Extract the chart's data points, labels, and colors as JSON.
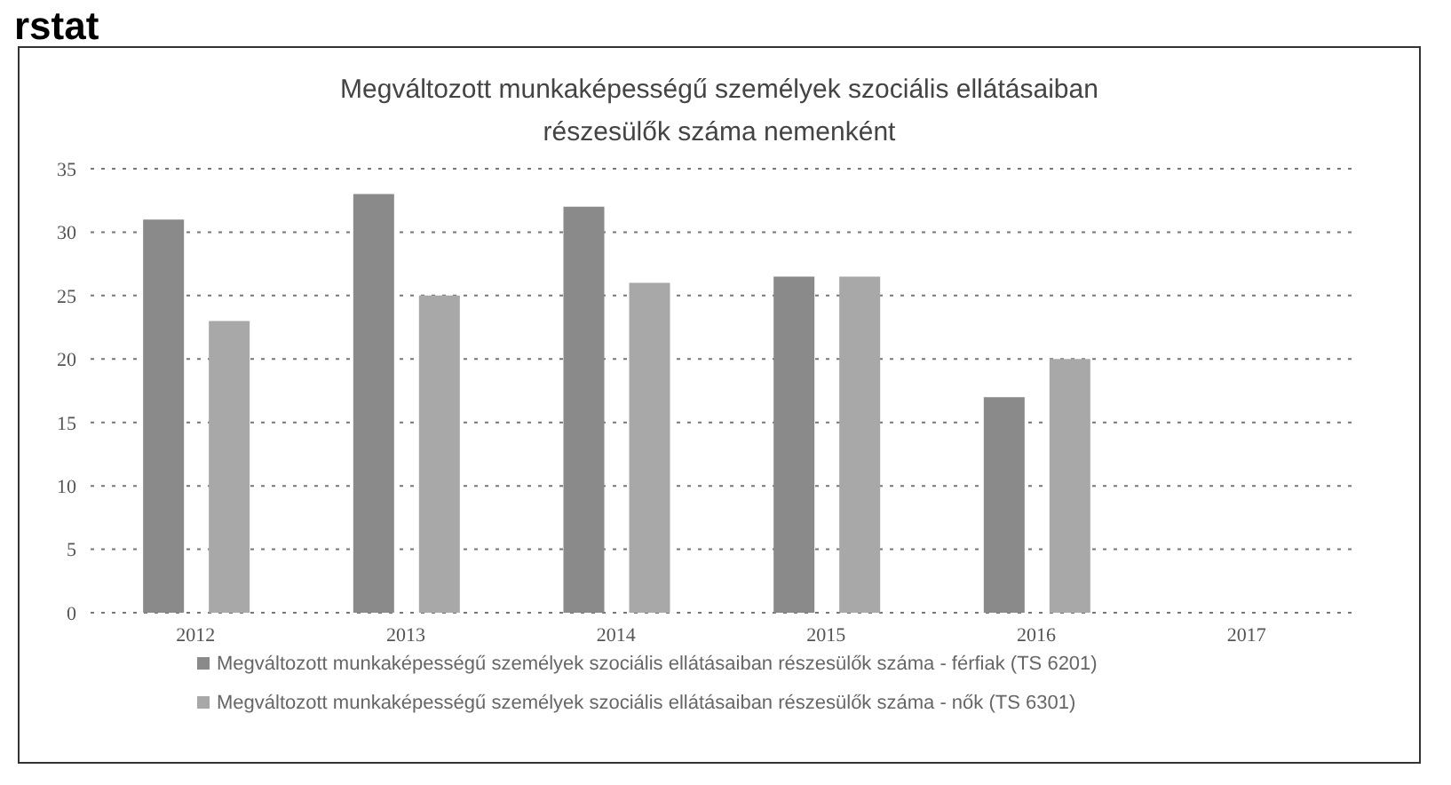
{
  "chart_data": {
    "type": "bar",
    "title": "Megváltozott munkaképességű személyek szociális ellátásaiban részesülők száma nemenként",
    "annotations": [
      "rstat"
    ],
    "categories": [
      "2012",
      "2013",
      "2014",
      "2015",
      "2016",
      "2017"
    ],
    "series": [
      {
        "name": "Megváltozott munkaképességű személyek szociális ellátásaiban részesülők száma - férfiak (TS 6201)",
        "color": "#8a8a8a",
        "values": [
          31,
          33,
          32,
          26.5,
          17,
          null
        ]
      },
      {
        "name": "Megváltozott munkaképességű személyek szociális ellátásaiban részesülők száma - nők (TS 6301)",
        "color": "#a8a8a8",
        "values": [
          23,
          25,
          26,
          26.5,
          20,
          null
        ]
      }
    ],
    "ylim": [
      0,
      35
    ],
    "yticks": [
      0,
      5,
      10,
      15,
      20,
      25,
      30,
      35
    ],
    "grid": "y",
    "legend": "bottom"
  }
}
